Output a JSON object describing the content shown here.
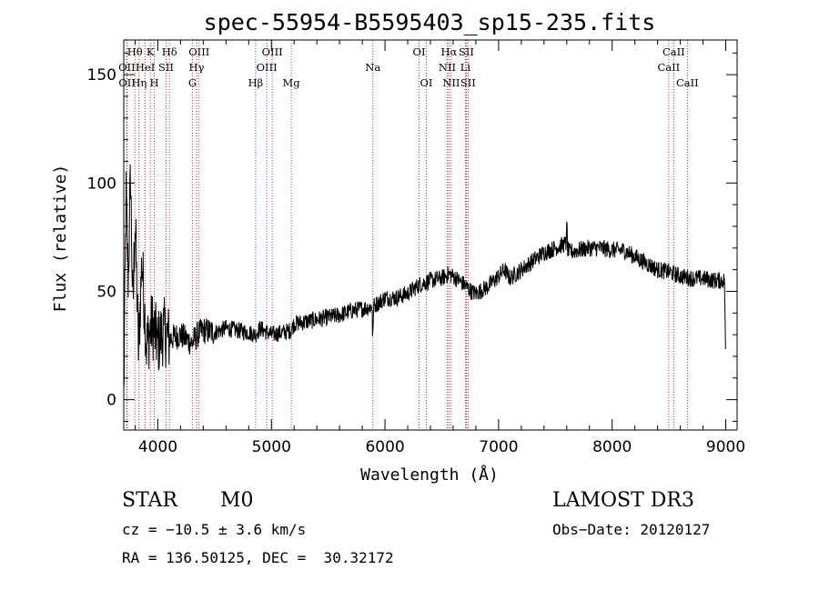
{
  "colors": {
    "axis": "#000000",
    "spectrum": "#000000",
    "line_marker": "#b40000",
    "background": "#ffffff"
  },
  "chart_data": {
    "type": "line",
    "title": "spec-55954-B5595403_sp15-235.fits",
    "xlabel": "Wavelength (Å)",
    "ylabel": "Flux (relative)",
    "xlim": [
      3700,
      9100
    ],
    "ylim": [
      -14,
      166
    ],
    "xticks": [
      4000,
      5000,
      6000,
      7000,
      8000,
      9000
    ],
    "yticks": [
      0,
      50,
      100,
      150
    ],
    "x_minor_step": 200,
    "y_minor_step": 10,
    "grid": false,
    "series": [
      {
        "name": "spectrum",
        "anchors": [
          [
            3700,
            0
          ],
          [
            3720,
            95
          ],
          [
            3740,
            55
          ],
          [
            3760,
            105
          ],
          [
            3780,
            40
          ],
          [
            3800,
            85
          ],
          [
            3830,
            22
          ],
          [
            3860,
            65
          ],
          [
            3900,
            25
          ],
          [
            3950,
            35
          ],
          [
            4000,
            26
          ],
          [
            4050,
            32
          ],
          [
            4100,
            28
          ],
          [
            4200,
            30
          ],
          [
            4300,
            26
          ],
          [
            4350,
            30
          ],
          [
            4400,
            32
          ],
          [
            4500,
            31
          ],
          [
            4600,
            33
          ],
          [
            4700,
            32
          ],
          [
            4800,
            31
          ],
          [
            4860,
            30
          ],
          [
            4900,
            33
          ],
          [
            5000,
            30
          ],
          [
            5100,
            31
          ],
          [
            5172,
            32
          ],
          [
            5200,
            35
          ],
          [
            5300,
            36
          ],
          [
            5400,
            37
          ],
          [
            5500,
            38
          ],
          [
            5600,
            39
          ],
          [
            5700,
            41
          ],
          [
            5800,
            42
          ],
          [
            5893,
            43
          ],
          [
            5950,
            45
          ],
          [
            6000,
            47
          ],
          [
            6100,
            47
          ],
          [
            6200,
            49
          ],
          [
            6300,
            53
          ],
          [
            6400,
            55
          ],
          [
            6500,
            56
          ],
          [
            6563,
            58
          ],
          [
            6600,
            57
          ],
          [
            6650,
            55
          ],
          [
            6700,
            53
          ],
          [
            6760,
            50
          ],
          [
            6800,
            49
          ],
          [
            6900,
            52
          ],
          [
            7000,
            57
          ],
          [
            7050,
            60
          ],
          [
            7100,
            56
          ],
          [
            7200,
            60
          ],
          [
            7300,
            64
          ],
          [
            7400,
            68
          ],
          [
            7500,
            70
          ],
          [
            7590,
            72
          ],
          [
            7620,
            68
          ],
          [
            7700,
            69
          ],
          [
            7800,
            70
          ],
          [
            7900,
            70
          ],
          [
            8000,
            69
          ],
          [
            8100,
            69
          ],
          [
            8200,
            66
          ],
          [
            8300,
            63
          ],
          [
            8400,
            60
          ],
          [
            8500,
            59
          ],
          [
            8600,
            57
          ],
          [
            8700,
            56
          ],
          [
            8800,
            56
          ],
          [
            8900,
            55
          ],
          [
            8990,
            55
          ],
          [
            9000,
            12
          ]
        ],
        "noise_amplitude": 4,
        "note": "Noisy stellar spectrum; anchor points sampled from the plotted curve, noise added at render."
      }
    ],
    "line_markers": [
      {
        "label": "Hθ",
        "wavelength": 3798,
        "row": 1
      },
      {
        "label": "OII",
        "wavelength": 3727,
        "row": 2
      },
      {
        "label": "OII",
        "wavelength": 3729,
        "row": 3
      },
      {
        "label": "K",
        "wavelength": 3934,
        "row": 1
      },
      {
        "label": "HeI",
        "wavelength": 3889,
        "row": 2
      },
      {
        "label": "Hη",
        "wavelength": 3835,
        "row": 3
      },
      {
        "label": "Hδ",
        "wavelength": 4102,
        "row": 1
      },
      {
        "label": "SII",
        "wavelength": 4072,
        "row": 2
      },
      {
        "label": "H",
        "wavelength": 3969,
        "row": 3
      },
      {
        "label": "OIII",
        "wavelength": 4363,
        "row": 1
      },
      {
        "label": "Hγ",
        "wavelength": 4341,
        "row": 2
      },
      {
        "label": "G",
        "wavelength": 4305,
        "row": 3
      },
      {
        "label": "OIII",
        "wavelength": 5007,
        "row": 1
      },
      {
        "label": "OIII",
        "wavelength": 4959,
        "row": 2
      },
      {
        "label": "Hβ",
        "wavelength": 4861,
        "row": 3
      },
      {
        "label": "Mg",
        "wavelength": 5175,
        "row": 3
      },
      {
        "label": "Na",
        "wavelength": 5893,
        "row": 2
      },
      {
        "label": "OI",
        "wavelength": 6300,
        "row": 1
      },
      {
        "label": "OI",
        "wavelength": 6364,
        "row": 3
      },
      {
        "label": "Hα",
        "wavelength": 6563,
        "row": 1
      },
      {
        "label": "NII",
        "wavelength": 6548,
        "row": 2
      },
      {
        "label": "NII",
        "wavelength": 6583,
        "row": 3
      },
      {
        "label": "SII",
        "wavelength": 6716,
        "row": 1
      },
      {
        "label": "Li",
        "wavelength": 6708,
        "row": 2
      },
      {
        "label": "SII",
        "wavelength": 6731,
        "row": 3
      },
      {
        "label": "CaII",
        "wavelength": 8542,
        "row": 1
      },
      {
        "label": "CaII",
        "wavelength": 8498,
        "row": 2
      },
      {
        "label": "CaII",
        "wavelength": 8662,
        "row": 3
      }
    ]
  },
  "footer": {
    "object_class": "STAR",
    "subclass": "M0",
    "survey": "LAMOST DR3",
    "redshift": "cz = −10.5 ± 3.6 km/s",
    "obs_date": "Obs−Date: 20120127",
    "coords": "RA = 136.50125, DEC =  30.32172"
  }
}
